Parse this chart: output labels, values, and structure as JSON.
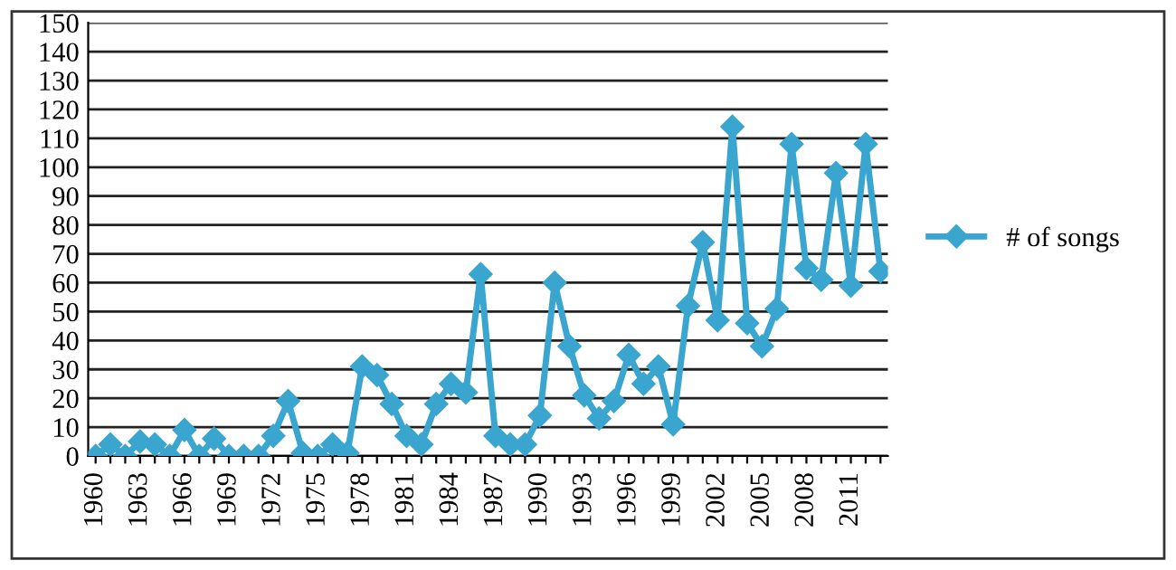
{
  "chart_data": {
    "type": "line",
    "categories": [
      "1960",
      null,
      null,
      "1963",
      null,
      null,
      "1966",
      null,
      null,
      "1969",
      null,
      null,
      "1972",
      null,
      null,
      "1975",
      null,
      null,
      "1978",
      null,
      null,
      "1981",
      null,
      null,
      "1984",
      null,
      null,
      "1987",
      null,
      null,
      "1990",
      null,
      null,
      "1993",
      null,
      null,
      "1996",
      null,
      null,
      "1999",
      null,
      null,
      "2002",
      null,
      null,
      "2005",
      null,
      null,
      "2008",
      null,
      null,
      "2011",
      null,
      null
    ],
    "series": [
      {
        "name": "# of songs",
        "color": "#3aa6d0",
        "values": [
          0,
          4,
          0,
          5,
          4,
          0,
          9,
          0,
          6,
          0,
          0,
          0,
          7,
          19,
          1,
          0,
          4,
          1,
          31,
          28,
          18,
          7,
          4,
          18,
          25,
          22,
          63,
          7,
          4,
          4,
          14,
          60,
          38,
          21,
          13,
          19,
          35,
          25,
          31,
          11,
          52,
          74,
          47,
          114,
          46,
          38,
          51,
          108,
          65,
          61,
          98,
          59,
          108,
          64
        ]
      }
    ],
    "ylim": [
      0,
      150
    ],
    "yticks": [
      0,
      10,
      20,
      30,
      40,
      50,
      60,
      70,
      80,
      90,
      100,
      110,
      120,
      130,
      140,
      150
    ],
    "grid": "y",
    "legend": "right",
    "marker": "diamond",
    "line_style": "solid"
  }
}
